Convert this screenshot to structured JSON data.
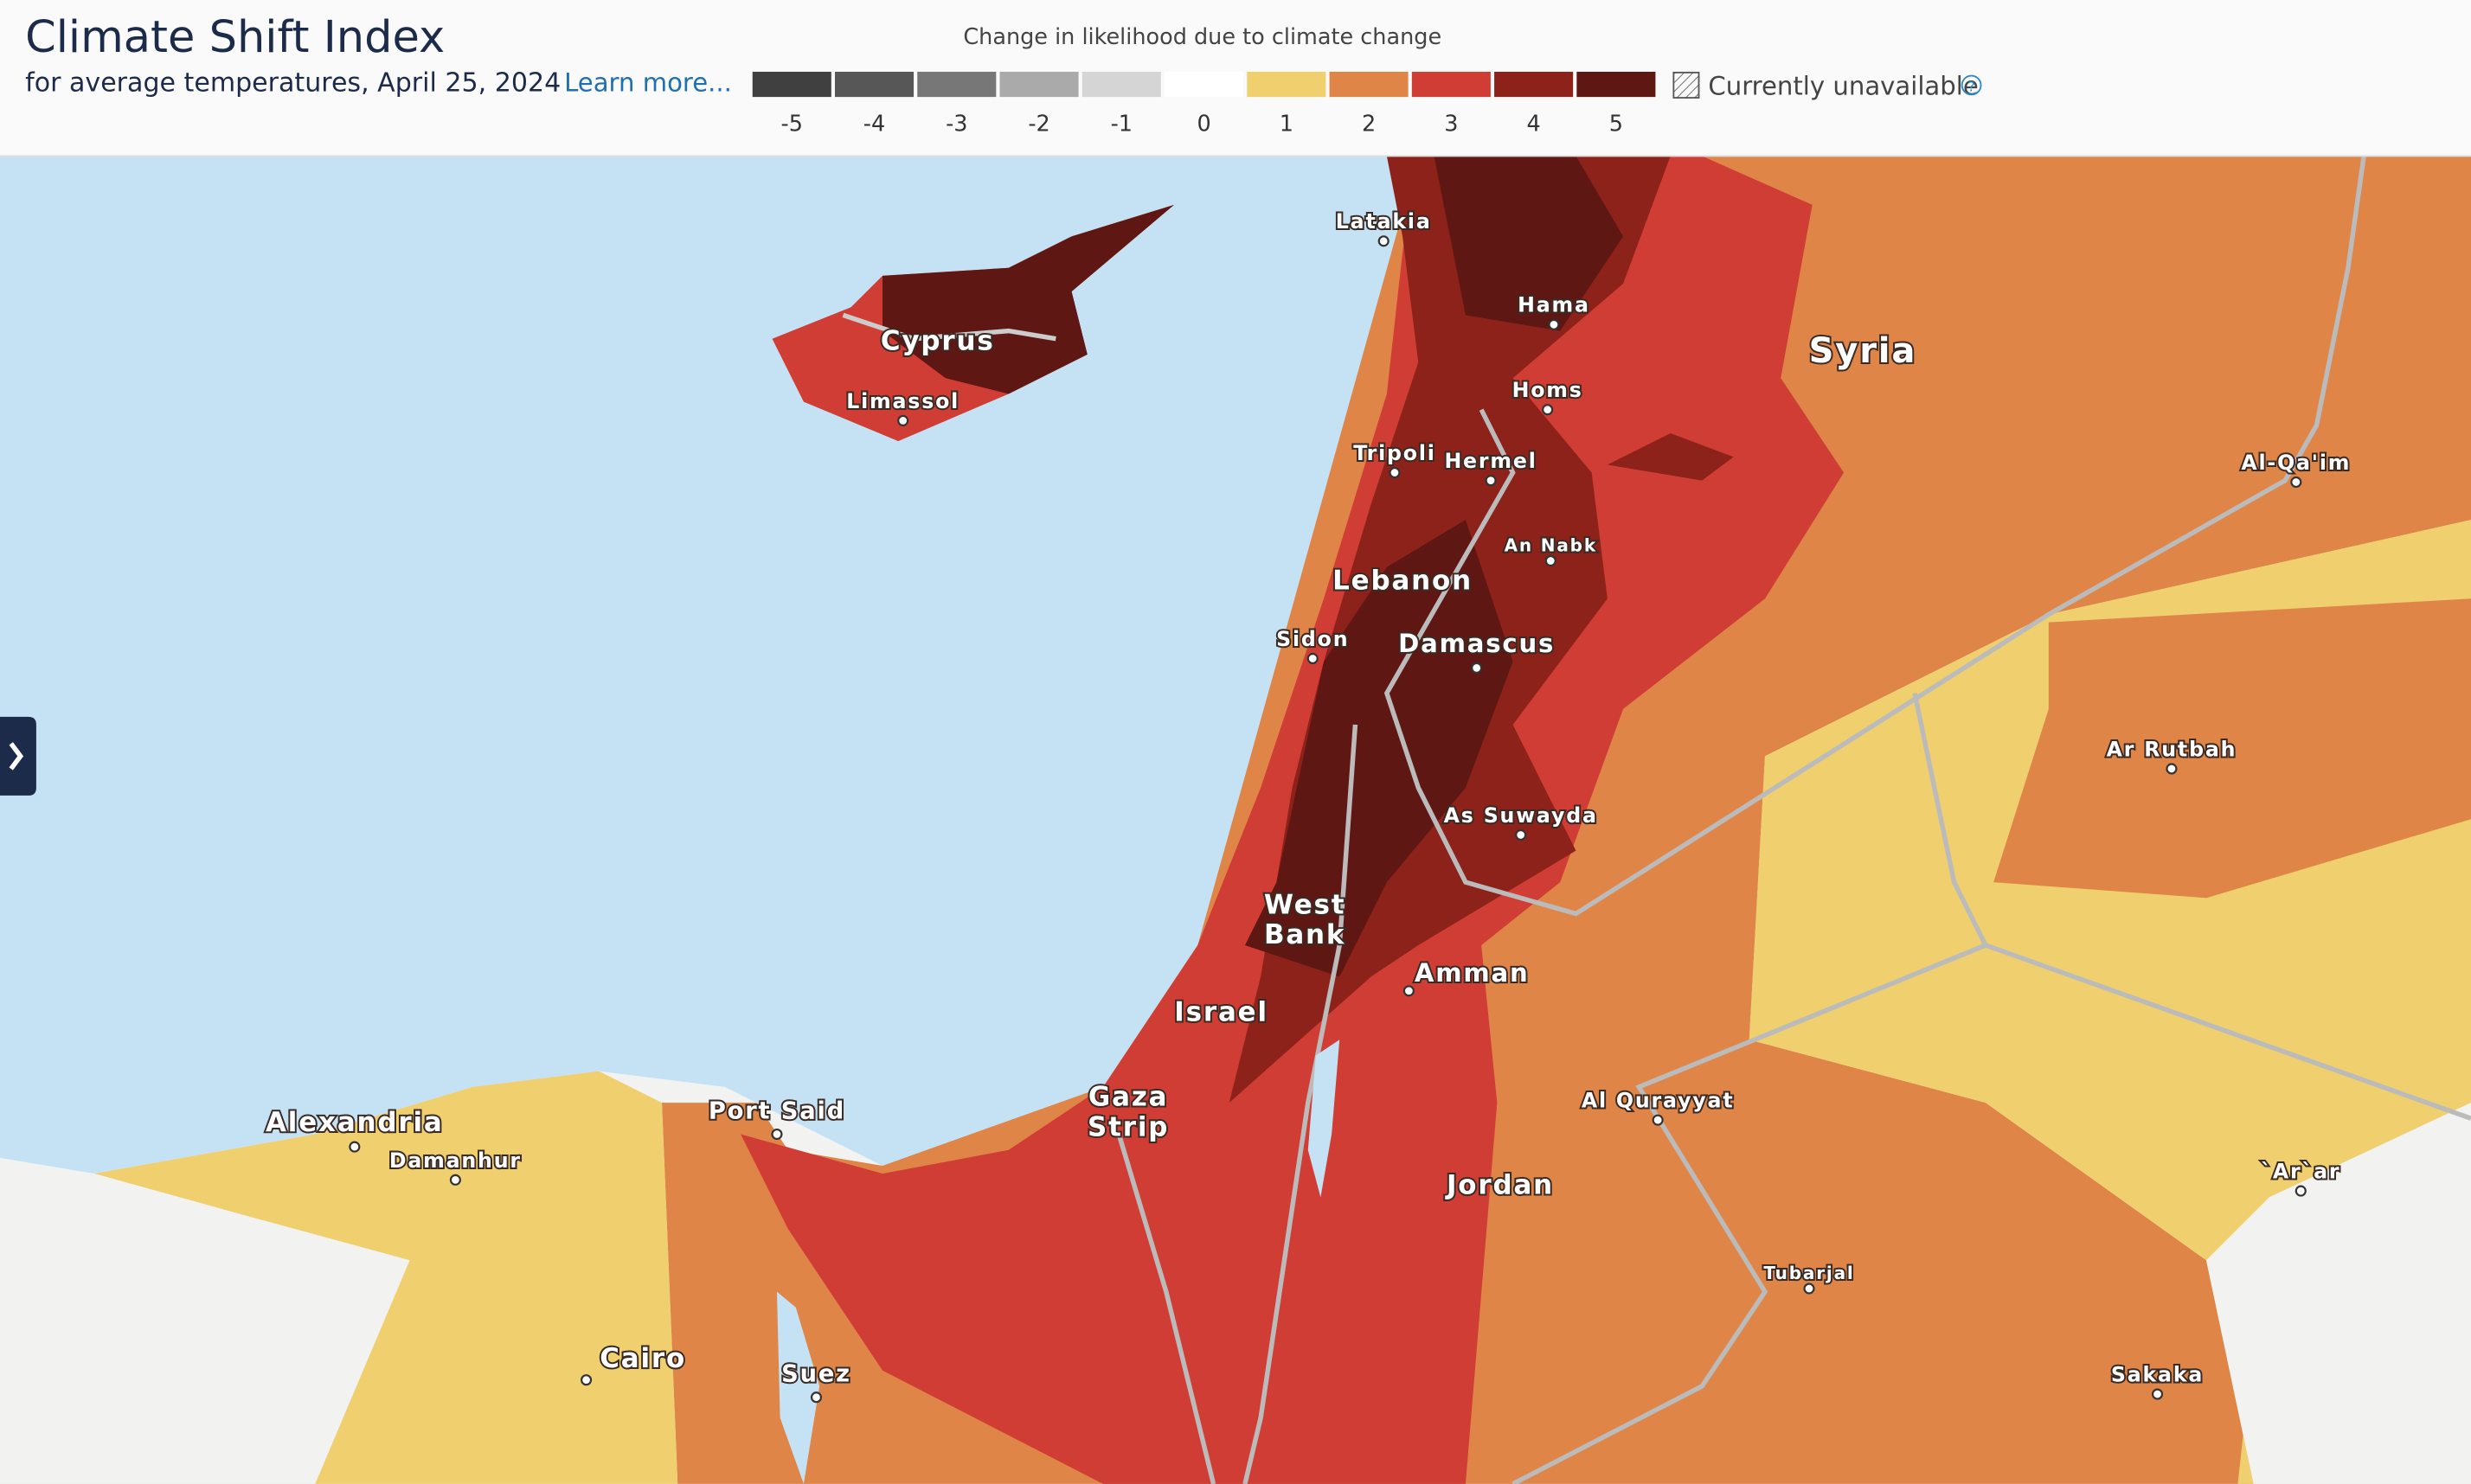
{
  "header": {
    "title": "Climate Shift Index",
    "subtitle": "for average temperatures, April 25, 2024",
    "learn_more": "Learn more..."
  },
  "legend": {
    "caption": "Change in likelihood due to climate change",
    "scale": [
      {
        "label": "-5",
        "color": "#404040"
      },
      {
        "label": "-4",
        "color": "#575757"
      },
      {
        "label": "-3",
        "color": "#777777"
      },
      {
        "label": "-2",
        "color": "#aaaaaa"
      },
      {
        "label": "-1",
        "color": "#d5d5d5"
      },
      {
        "label": "0",
        "color": "#ffffff"
      },
      {
        "label": "1",
        "color": "#efcf6e"
      },
      {
        "label": "2",
        "color": "#df8548"
      },
      {
        "label": "3",
        "color": "#d03d34"
      },
      {
        "label": "4",
        "color": "#8c2219"
      },
      {
        "label": "5",
        "color": "#5e1713"
      }
    ],
    "unavailable": "Currently unavailable"
  },
  "map_labels": [
    {
      "lines": [
        "Latakia"
      ]
    },
    {
      "lines": [
        "Hama"
      ]
    },
    {
      "lines": [
        "Syria"
      ]
    },
    {
      "lines": [
        "Cyprus"
      ]
    },
    {
      "lines": [
        "Limassol"
      ]
    },
    {
      "lines": [
        "Homs"
      ]
    },
    {
      "lines": [
        "Tripoli"
      ]
    },
    {
      "lines": [
        "Hermel"
      ]
    },
    {
      "lines": [
        "Al-Qa'im"
      ]
    },
    {
      "lines": [
        "An Nabk"
      ]
    },
    {
      "lines": [
        "Lebanon"
      ]
    },
    {
      "lines": [
        "Sidon"
      ]
    },
    {
      "lines": [
        "Damascus"
      ]
    },
    {
      "lines": [
        "Ar Rutbah"
      ]
    },
    {
      "lines": [
        "As Suwayda"
      ]
    },
    {
      "lines": [
        "West",
        "Bank"
      ]
    },
    {
      "lines": [
        "Amman"
      ]
    },
    {
      "lines": [
        "Israel"
      ]
    },
    {
      "lines": [
        "Gaza",
        "Strip"
      ]
    },
    {
      "lines": [
        "Alexandria"
      ]
    },
    {
      "lines": [
        "Port Said"
      ]
    },
    {
      "lines": [
        "Al Qurayyat"
      ]
    },
    {
      "lines": [
        "Damanhur"
      ]
    },
    {
      "lines": [
        "Jordan"
      ]
    },
    {
      "lines": [
        "`Ar`ar"
      ]
    },
    {
      "lines": [
        "Tubarjal"
      ]
    },
    {
      "lines": [
        "Cairo"
      ]
    },
    {
      "lines": [
        "Suez"
      ]
    },
    {
      "lines": [
        "Sakaka"
      ]
    }
  ]
}
